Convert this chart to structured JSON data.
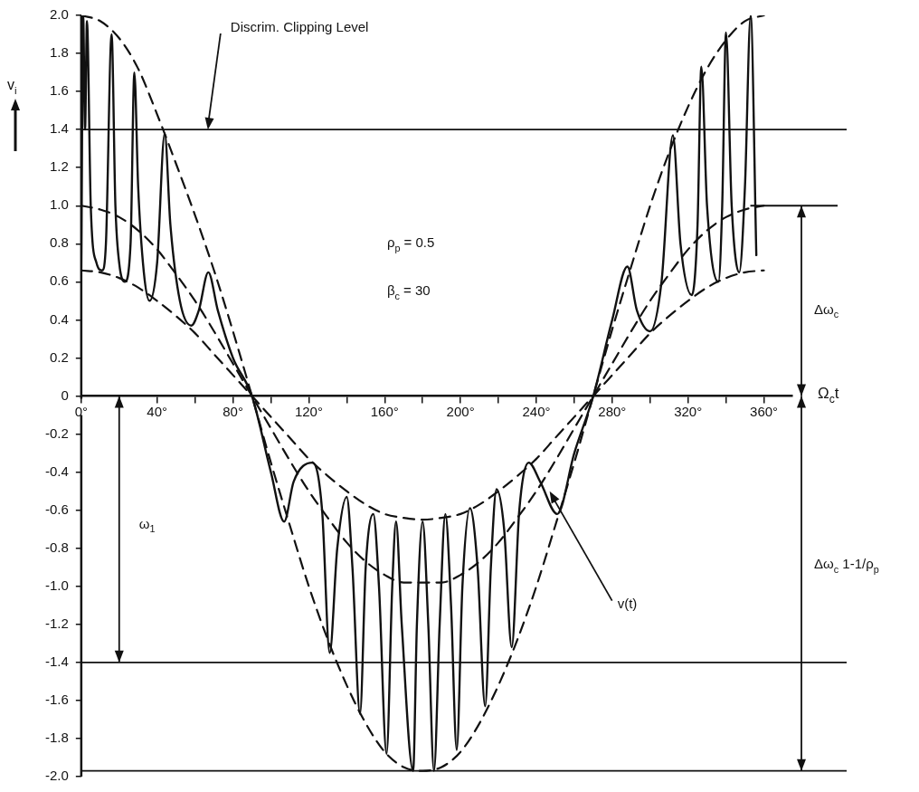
{
  "chart_data": {
    "type": "line",
    "xlabel": "Ω$_{c}$t",
    "ylabel": "v$_{i}$",
    "xlim": [
      0,
      375
    ],
    "xticks": [
      {
        "value": 0,
        "label": "0°"
      },
      {
        "value": 20,
        "label": null
      },
      {
        "value": 40,
        "label": "40°"
      },
      {
        "value": 60,
        "label": null
      },
      {
        "value": 80,
        "label": "80°"
      },
      {
        "value": 100,
        "label": null
      },
      {
        "value": 120,
        "label": "120°"
      },
      {
        "value": 140,
        "label": null
      },
      {
        "value": 160,
        "label": "160°"
      },
      {
        "value": 180,
        "label": null
      },
      {
        "value": 200,
        "label": "200°"
      },
      {
        "value": 220,
        "label": null
      },
      {
        "value": 240,
        "label": "240°"
      },
      {
        "value": 260,
        "label": null
      },
      {
        "value": 280,
        "label": "280°"
      },
      {
        "value": 300,
        "label": null
      },
      {
        "value": 320,
        "label": "320°"
      },
      {
        "value": 340,
        "label": null
      },
      {
        "value": 360,
        "label": "360°"
      }
    ],
    "ylim": [
      -2.0,
      2.0
    ],
    "yticks": [
      {
        "value": 2.0,
        "label": "2.0"
      },
      {
        "value": 1.8,
        "label": "1.8"
      },
      {
        "value": 1.6,
        "label": "1.6"
      },
      {
        "value": 1.4,
        "label": "1.4"
      },
      {
        "value": 1.2,
        "label": "1.2"
      },
      {
        "value": 1.0,
        "label": "1.0"
      },
      {
        "value": 0.8,
        "label": "0.8"
      },
      {
        "value": 0.6,
        "label": "0.6"
      },
      {
        "value": 0.4,
        "label": "0.4"
      },
      {
        "value": 0.2,
        "label": "0.2"
      },
      0,
      {
        "value": -0.2,
        "label": "-0.2"
      },
      {
        "value": -0.4,
        "label": "-0.4"
      },
      {
        "value": -0.6,
        "label": "-0.6"
      },
      {
        "value": -0.8,
        "label": "-0.8"
      },
      {
        "value": -1.0,
        "label": "-1.0"
      },
      {
        "value": -1.2,
        "label": "-1.2"
      },
      {
        "value": -1.4,
        "label": "-1.4"
      },
      {
        "value": -1.6,
        "label": "-1.6"
      },
      {
        "value": -1.8,
        "label": "-1.8"
      },
      {
        "value": -2.0,
        "label": "-2.0"
      }
    ],
    "grid": false,
    "legend": false,
    "marker": "none",
    "line_style": "solid",
    "series": [
      {
        "color": "#111111",
        "x": [
          0,
          1,
          2,
          3,
          5,
          8,
          11,
          13,
          16,
          18,
          20,
          23,
          26,
          28,
          30,
          33,
          36,
          40,
          44,
          47,
          52,
          58,
          62,
          67,
          72,
          80,
          90,
          100,
          107,
          112,
          122,
          127,
          131,
          135,
          140,
          143,
          147,
          150,
          154,
          157,
          161,
          164,
          166,
          169,
          175,
          177,
          180,
          183,
          186,
          189,
          192,
          195,
          198,
          201,
          205,
          209,
          213,
          216,
          219,
          223,
          227,
          231,
          236,
          242,
          251,
          260,
          270,
          280,
          288,
          293,
          300,
          306,
          312,
          316,
          322,
          325,
          327,
          330,
          336,
          338,
          340,
          343,
          347,
          350,
          353,
          356
        ],
        "values": [
          0.67,
          2.0,
          1.4,
          1.97,
          1.0,
          0.7,
          0.66,
          0.8,
          1.9,
          1.0,
          0.7,
          0.6,
          0.8,
          1.7,
          1.1,
          0.65,
          0.5,
          0.7,
          1.38,
          0.9,
          0.5,
          0.37,
          0.45,
          0.65,
          0.45,
          0.2,
          0,
          -0.4,
          -0.66,
          -0.45,
          -0.35,
          -0.6,
          -1.35,
          -0.8,
          -0.53,
          -0.9,
          -1.67,
          -0.9,
          -0.62,
          -1.0,
          -1.88,
          -1.0,
          -0.66,
          -1.2,
          -1.97,
          -1.2,
          -0.66,
          -1.2,
          -1.97,
          -1.2,
          -0.62,
          -1.1,
          -1.86,
          -1.0,
          -0.59,
          -0.9,
          -1.63,
          -0.9,
          -0.49,
          -0.7,
          -1.32,
          -0.6,
          -0.35,
          -0.45,
          -0.62,
          -0.3,
          0,
          0.4,
          0.68,
          0.45,
          0.34,
          0.6,
          1.37,
          0.8,
          0.53,
          0.9,
          1.73,
          1.0,
          0.6,
          1.0,
          1.91,
          1.0,
          0.65,
          1.1,
          2.0,
          0.74
        ]
      },
      {
        "color": "#111111",
        "line_style": "dashed",
        "x": [
          0,
          10,
          20,
          30,
          40,
          50,
          60,
          70,
          80,
          90,
          100,
          110,
          120,
          130,
          140,
          150,
          160,
          170,
          180,
          190,
          200,
          210,
          220,
          230,
          240,
          250,
          260,
          270,
          280,
          290,
          300,
          310,
          320,
          330,
          340,
          350,
          360
        ],
        "values": [
          2.0,
          1.97,
          1.88,
          1.72,
          1.48,
          1.22,
          0.95,
          0.66,
          0.34,
          0,
          -0.35,
          -0.68,
          -1.0,
          -1.28,
          -1.52,
          -1.72,
          -1.87,
          -1.95,
          -1.97,
          -1.95,
          -1.87,
          -1.72,
          -1.52,
          -1.28,
          -1.0,
          -0.68,
          -0.35,
          0,
          0.35,
          0.68,
          1.0,
          1.28,
          1.52,
          1.72,
          1.87,
          1.97,
          2.0
        ]
      },
      {
        "color": "#111111",
        "line_style": "dashed",
        "x": [
          0,
          10,
          20,
          30,
          40,
          50,
          60,
          70,
          80,
          90,
          100,
          110,
          120,
          130,
          140,
          150,
          160,
          170,
          180,
          190,
          200,
          210,
          220,
          230,
          240,
          250,
          260,
          270,
          280,
          290,
          300,
          310,
          320,
          330,
          340,
          350,
          360
        ],
        "values": [
          1.0,
          0.98,
          0.94,
          0.87,
          0.77,
          0.64,
          0.5,
          0.34,
          0.17,
          0,
          -0.17,
          -0.34,
          -0.5,
          -0.64,
          -0.77,
          -0.87,
          -0.94,
          -0.98,
          -0.98,
          -0.98,
          -0.94,
          -0.87,
          -0.77,
          -0.64,
          -0.5,
          -0.34,
          -0.17,
          0,
          0.17,
          0.34,
          0.5,
          0.64,
          0.77,
          0.87,
          0.94,
          0.98,
          1.0
        ]
      },
      {
        "color": "#111111",
        "line_style": "dashed",
        "x": [
          0,
          10,
          20,
          30,
          40,
          50,
          60,
          70,
          80,
          90,
          100,
          110,
          120,
          130,
          140,
          150,
          160,
          170,
          180,
          190,
          200,
          210,
          220,
          230,
          240,
          250,
          260,
          270,
          280,
          290,
          300,
          310,
          320,
          330,
          340,
          350,
          360
        ],
        "values": [
          0.66,
          0.65,
          0.62,
          0.57,
          0.5,
          0.42,
          0.33,
          0.22,
          0.11,
          0,
          -0.11,
          -0.22,
          -0.33,
          -0.42,
          -0.5,
          -0.57,
          -0.62,
          -0.64,
          -0.65,
          -0.64,
          -0.62,
          -0.57,
          -0.5,
          -0.42,
          -0.33,
          -0.22,
          -0.11,
          0,
          0.11,
          0.22,
          0.33,
          0.42,
          0.5,
          0.57,
          0.62,
          0.65,
          0.66
        ]
      }
    ],
    "ref_lines": [
      {
        "axis": "y",
        "value": 1.4,
        "label": "Discrim. Clipping Level"
      },
      {
        "axis": "y",
        "value": -1.4
      },
      {
        "axis": "y",
        "value": -1.97
      }
    ],
    "annotations": [
      "ρ$_{p}$ = 0.5",
      "β$_{c}$ = 30",
      {
        "text": "v(t)",
        "x": 247,
        "y": -0.5
      },
      "Δω$_{c}$",
      "ω$_{1}$",
      "Δω$_{c}$ 1-1/ρ$_{p}$"
    ]
  }
}
